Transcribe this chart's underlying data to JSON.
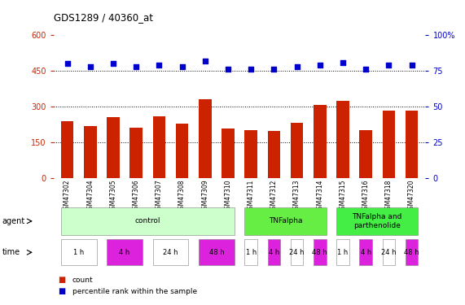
{
  "title": "GDS1289 / 40360_at",
  "samples": [
    "GSM47302",
    "GSM47304",
    "GSM47305",
    "GSM47306",
    "GSM47307",
    "GSM47308",
    "GSM47309",
    "GSM47310",
    "GSM47311",
    "GSM47312",
    "GSM47313",
    "GSM47314",
    "GSM47315",
    "GSM47316",
    "GSM47318",
    "GSM47320"
  ],
  "counts": [
    240,
    218,
    255,
    213,
    260,
    228,
    330,
    208,
    203,
    198,
    233,
    308,
    325,
    203,
    283,
    283
  ],
  "percentiles": [
    80,
    78,
    80,
    78,
    79,
    78,
    82,
    76,
    76,
    76,
    78,
    79,
    81,
    76,
    79,
    79
  ],
  "bar_color": "#cc2200",
  "dot_color": "#0000cc",
  "ylim_left": [
    0,
    600
  ],
  "ylim_right": [
    0,
    100
  ],
  "yticks_left": [
    0,
    150,
    300,
    450,
    600
  ],
  "yticks_right": [
    0,
    25,
    50,
    75,
    100
  ],
  "grid_values": [
    150,
    300,
    450
  ],
  "agent_groups": [
    {
      "label": "control",
      "start": 0,
      "end": 8,
      "color": "#ccffcc"
    },
    {
      "label": "TNFalpha",
      "start": 8,
      "end": 12,
      "color": "#66ee44"
    },
    {
      "label": "TNFalpha and\nparthenolide",
      "start": 12,
      "end": 16,
      "color": "#44ee44"
    }
  ],
  "time_groups": [
    {
      "label": "1 h",
      "start": 0,
      "end": 2,
      "alt": 0
    },
    {
      "label": "4 h",
      "start": 2,
      "end": 4,
      "alt": 1
    },
    {
      "label": "24 h",
      "start": 4,
      "end": 6,
      "alt": 0
    },
    {
      "label": "48 h",
      "start": 6,
      "end": 8,
      "alt": 1
    },
    {
      "label": "1 h",
      "start": 8,
      "end": 9,
      "alt": 0
    },
    {
      "label": "4 h",
      "start": 9,
      "end": 10,
      "alt": 1
    },
    {
      "label": "24 h",
      "start": 10,
      "end": 11,
      "alt": 0
    },
    {
      "label": "48 h",
      "start": 11,
      "end": 12,
      "alt": 1
    },
    {
      "label": "1 h",
      "start": 12,
      "end": 13,
      "alt": 0
    },
    {
      "label": "4 h",
      "start": 13,
      "end": 14,
      "alt": 1
    },
    {
      "label": "24 h",
      "start": 14,
      "end": 15,
      "alt": 0
    },
    {
      "label": "48 h",
      "start": 15,
      "end": 16,
      "alt": 1
    }
  ],
  "time_colors": [
    "#ffffff",
    "#dd22dd"
  ],
  "legend_count_color": "#cc2200",
  "legend_dot_color": "#0000cc",
  "background_color": "#ffffff",
  "tick_color_left": "#cc2200",
  "tick_color_right": "#0000cc",
  "bar_width": 0.55,
  "xlim": [
    -0.6,
    15.6
  ]
}
